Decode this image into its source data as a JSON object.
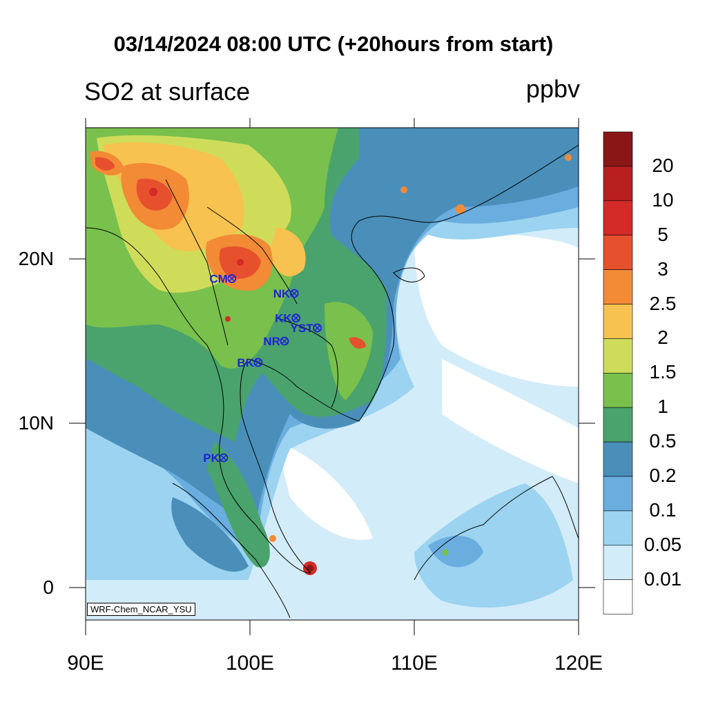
{
  "title": "03/14/2024 08:00 UTC (+20hours from start)",
  "variable": "SO2 at surface",
  "units": "ppbv",
  "credit": "WRF-Chem_NCAR_YSU",
  "lat_labels": [
    "20N",
    "10N",
    "0"
  ],
  "lon_labels": [
    "90E",
    "100E",
    "110E",
    "120E"
  ],
  "colorbar": {
    "labels": [
      "20",
      "10",
      "5",
      "3",
      "2.5",
      "2",
      "1.5",
      "1",
      "0.5",
      "0.2",
      "0.1",
      "0.05",
      "0.01"
    ],
    "colors": [
      "#ffffff",
      "#d3ecf9",
      "#9bd3f0",
      "#6aaddf",
      "#4a8fba",
      "#4aa36c",
      "#79c04d",
      "#cfdc5a",
      "#f7c24f",
      "#f28a36",
      "#e6502d",
      "#d42a28",
      "#b8201f",
      "#8b1616"
    ]
  },
  "stations": [
    {
      "code": "CM",
      "lon": 98.9,
      "lat": 18.8
    },
    {
      "code": "NK",
      "lon": 102.7,
      "lat": 17.9
    },
    {
      "code": "KK",
      "lon": 102.8,
      "lat": 16.4
    },
    {
      "code": "YST",
      "lon": 104.1,
      "lat": 15.8
    },
    {
      "code": "NR",
      "lon": 102.1,
      "lat": 15.0
    },
    {
      "code": "BK",
      "lon": 100.5,
      "lat": 13.7
    },
    {
      "code": "PK",
      "lon": 98.4,
      "lat": 7.9
    }
  ]
}
